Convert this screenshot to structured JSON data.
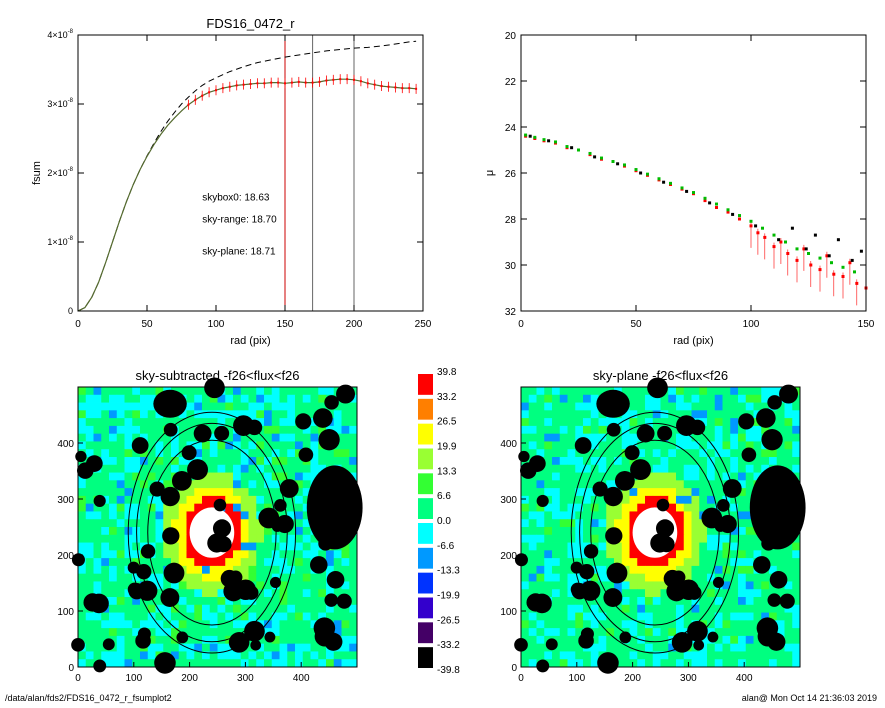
{
  "footer": {
    "path": "/data/alan/fds2/FDS16_0472_r_fsumplot2",
    "user_time": "alan@  Mon Oct 14 21:36:03 2019"
  },
  "colors": {
    "sky_range": "#ff0000",
    "sky_plane": "#00cc00",
    "skybox": "#000000"
  },
  "chart_data": [
    {
      "type": "line",
      "title": "FDS16_0472_r",
      "xlabel": "rad (pix)",
      "ylabel": "fsum",
      "xlim": [
        0,
        250
      ],
      "ylim": [
        0,
        4e-08
      ],
      "xticks": [
        0,
        50,
        100,
        150,
        200,
        250
      ],
      "yticks": [
        {
          "v": 0,
          "m": "0",
          "e": ""
        },
        {
          "v": 1e-08,
          "m": "1×10",
          "e": "-8"
        },
        {
          "v": 2e-08,
          "m": "2×10",
          "e": "-8"
        },
        {
          "v": 3e-08,
          "m": "3×10",
          "e": "-8"
        },
        {
          "v": 4e-08,
          "m": "4×10",
          "e": "-8"
        }
      ],
      "annotations": [
        {
          "text": "skybox0: 18.63",
          "color": "#000000",
          "x": 90,
          "y": 1.6e-08
        },
        {
          "text": "sky-range: 18.70",
          "color": "#ff0000",
          "x": 90,
          "y": 1.28e-08
        },
        {
          "text": "sky-plane: 18.71",
          "color": "#00cc00",
          "x": 90,
          "y": 8.2e-09
        }
      ],
      "vlines": [
        {
          "x": 150,
          "color": "#cc0000"
        },
        {
          "x": 170,
          "color": "#666666"
        },
        {
          "x": 200,
          "color": "#666666"
        }
      ],
      "series": [
        {
          "style": "dashed",
          "color": "#000000",
          "x": [
            0,
            5,
            10,
            15,
            20,
            25,
            30,
            35,
            40,
            45,
            50,
            55,
            60,
            65,
            70,
            75,
            80,
            85,
            90,
            95,
            100,
            110,
            120,
            130,
            140,
            150,
            160,
            170,
            180,
            190,
            200,
            210,
            220,
            230,
            240,
            245
          ],
          "y": [
            0,
            5e-10,
            2e-09,
            4.2e-09,
            7e-09,
            1e-08,
            1.3e-08,
            1.58e-08,
            1.83e-08,
            2.05e-08,
            2.25e-08,
            2.43e-08,
            2.6e-08,
            2.75e-08,
            2.88e-08,
            3e-08,
            3.1e-08,
            3.19e-08,
            3.27e-08,
            3.33e-08,
            3.38e-08,
            3.47e-08,
            3.54e-08,
            3.6e-08,
            3.64e-08,
            3.68e-08,
            3.71e-08,
            3.74e-08,
            3.77e-08,
            3.79e-08,
            3.81e-08,
            3.82e-08,
            3.84e-08,
            3.87e-08,
            3.9e-08,
            3.91e-08
          ]
        },
        {
          "style": "errorbars",
          "color": "#ff0000",
          "x": [
            0,
            5,
            10,
            15,
            20,
            25,
            30,
            35,
            40,
            45,
            50,
            55,
            60,
            65,
            70,
            75,
            80,
            85,
            90,
            95,
            100,
            105,
            110,
            115,
            120,
            125,
            130,
            135,
            140,
            145,
            150,
            155,
            160,
            165,
            170,
            175,
            180,
            185,
            190,
            195,
            200,
            205,
            210,
            215,
            220,
            225,
            230,
            235,
            240,
            245
          ],
          "y": [
            0,
            5e-10,
            2e-09,
            4.2e-09,
            7e-09,
            1e-08,
            1.3e-08,
            1.58e-08,
            1.83e-08,
            2.05e-08,
            2.24e-08,
            2.41e-08,
            2.56e-08,
            2.69e-08,
            2.8e-08,
            2.9e-08,
            2.99e-08,
            3.06e-08,
            3.12e-08,
            3.17e-08,
            3.2e-08,
            3.23e-08,
            3.25e-08,
            3.27e-08,
            3.28e-08,
            3.29e-08,
            3.3e-08,
            3.3e-08,
            3.31e-08,
            3.31e-08,
            3.3e-08,
            3.31e-08,
            3.32e-08,
            3.31e-08,
            3.31e-08,
            3.32e-08,
            3.34e-08,
            3.35e-08,
            3.36e-08,
            3.36e-08,
            3.35e-08,
            3.33e-08,
            3.3e-08,
            3.28e-08,
            3.26e-08,
            3.25e-08,
            3.24e-08,
            3.23e-08,
            3.23e-08,
            3.22e-08
          ]
        }
      ]
    },
    {
      "type": "scatter",
      "title": "",
      "xlabel": "rad (pix)",
      "ylabel": "μ",
      "xlim": [
        0,
        150
      ],
      "ylim": [
        32,
        20
      ],
      "xticks": [
        0,
        50,
        100,
        150
      ],
      "yticks": [
        20,
        22,
        24,
        26,
        28,
        30,
        32
      ],
      "series": [
        {
          "color": "#ff0000",
          "x": [
            2,
            6,
            10,
            15,
            20,
            25,
            30,
            35,
            40,
            45,
            50,
            55,
            60,
            65,
            70,
            75,
            80,
            85,
            90,
            95,
            100,
            103,
            106,
            110,
            113,
            116,
            120,
            123,
            126,
            130,
            133,
            136,
            140,
            143,
            146,
            150
          ],
          "y": [
            24.4,
            24.5,
            24.6,
            24.7,
            24.9,
            25.0,
            25.2,
            25.4,
            25.5,
            25.7,
            25.9,
            26.1,
            26.3,
            26.5,
            26.7,
            26.9,
            27.2,
            27.5,
            27.7,
            28.0,
            28.3,
            28.6,
            28.8,
            29.2,
            29.0,
            29.5,
            29.8,
            29.3,
            30.0,
            30.2,
            29.6,
            30.4,
            30.5,
            29.9,
            30.8,
            31.0
          ]
        },
        {
          "color": "#00bb00",
          "x": [
            2,
            6,
            10,
            15,
            20,
            25,
            30,
            35,
            40,
            45,
            50,
            55,
            60,
            65,
            70,
            75,
            80,
            85,
            90,
            95,
            100,
            105,
            110,
            115,
            120,
            125,
            130,
            135,
            140,
            145
          ],
          "y": [
            24.35,
            24.45,
            24.55,
            24.65,
            24.85,
            25.0,
            25.15,
            25.35,
            25.5,
            25.65,
            25.85,
            26.05,
            26.25,
            26.45,
            26.65,
            26.85,
            27.1,
            27.35,
            27.6,
            27.85,
            28.1,
            28.4,
            28.7,
            29.0,
            29.3,
            29.5,
            29.7,
            29.9,
            30.1,
            30.3
          ]
        },
        {
          "color": "#000000",
          "x": [
            4,
            12,
            22,
            32,
            42,
            52,
            62,
            72,
            82,
            92,
            102,
            112,
            118,
            124,
            128,
            134,
            138,
            144,
            148
          ],
          "y": [
            24.4,
            24.6,
            24.9,
            25.3,
            25.6,
            26.0,
            26.4,
            26.8,
            27.3,
            27.8,
            28.3,
            28.9,
            28.4,
            29.3,
            28.7,
            29.6,
            28.9,
            29.8,
            29.4
          ]
        }
      ]
    },
    {
      "type": "heatmap",
      "title": "sky-subtracted -f26<flux<f26",
      "xlim": [
        0,
        500
      ],
      "ylim": [
        0,
        500
      ],
      "xticks": [
        0,
        100,
        200,
        300,
        400
      ],
      "yticks": [
        0,
        100,
        200,
        300,
        400
      ],
      "center": [
        240,
        240
      ]
    },
    {
      "type": "heatmap",
      "title": "sky-plane -f26<flux<f26",
      "xlim": [
        0,
        500
      ],
      "ylim": [
        0,
        500
      ],
      "xticks": [
        0,
        100,
        200,
        300,
        400
      ],
      "yticks": [
        0,
        100,
        200,
        300,
        400
      ],
      "center": [
        240,
        240
      ]
    }
  ],
  "colorbar": {
    "labels": [
      "39.8",
      "33.2",
      "26.5",
      "19.9",
      "13.3",
      "6.6",
      "0.0",
      "-6.6",
      "-13.3",
      "-19.9",
      "-26.5",
      "-33.2",
      "-39.8"
    ],
    "colors": [
      "#ff0000",
      "#ff7f00",
      "#ffff00",
      "#99ff33",
      "#33ff33",
      "#00ff80",
      "#00ffff",
      "#0099ff",
      "#0033ff",
      "#3300cc",
      "#440066",
      "#000000"
    ]
  }
}
